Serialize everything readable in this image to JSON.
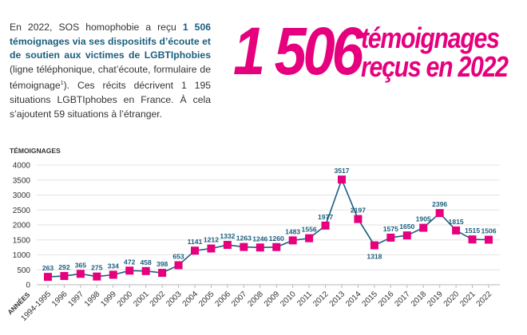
{
  "intro": {
    "part1": "En 2022, SOS homophobie a reçu ",
    "bold": "1 506 témoignages via ses dispositifs d’écoute et de soutien aux victimes de LGBTIphobies",
    "part2": " (ligne téléphonique, chat’écoute, formulaire de témoignage",
    "footnote": "1",
    "part3": "). Ces récits décrivent 1 195 situations LGBTIphobes en France. À cela s’ajoutent 59 situations à l’étranger."
  },
  "headline": {
    "number": "1 506",
    "line1": "témoignages",
    "line2": "reçus en 2022"
  },
  "colors": {
    "accent": "#e6007e",
    "line": "#1b5e7e",
    "text": "#333333",
    "grid": "#e3e3e3"
  },
  "chart_data": {
    "type": "line",
    "ylabel": "TÉMOIGNAGES",
    "xlabel": "ANNÉES",
    "ylim": [
      0,
      4000
    ],
    "yticks": [
      0,
      500,
      1000,
      1500,
      2000,
      2500,
      3000,
      3500,
      4000
    ],
    "grid": true,
    "categories": [
      "1994-1995",
      "1996",
      "1997",
      "1998",
      "1999",
      "2000",
      "2001",
      "2002",
      "2003",
      "2004",
      "2005",
      "2006",
      "2007",
      "2008",
      "2009",
      "2010",
      "2011",
      "2012",
      "2013",
      "2014",
      "2015",
      "2016",
      "2017",
      "2018",
      "2019",
      "2020",
      "2021",
      "2022"
    ],
    "values": [
      263,
      292,
      365,
      275,
      334,
      472,
      458,
      398,
      653,
      1141,
      1212,
      1332,
      1263,
      1246,
      1260,
      1483,
      1556,
      1977,
      3517,
      2197,
      1318,
      1575,
      1650,
      1905,
      2396,
      1815,
      1515,
      1506
    ]
  }
}
